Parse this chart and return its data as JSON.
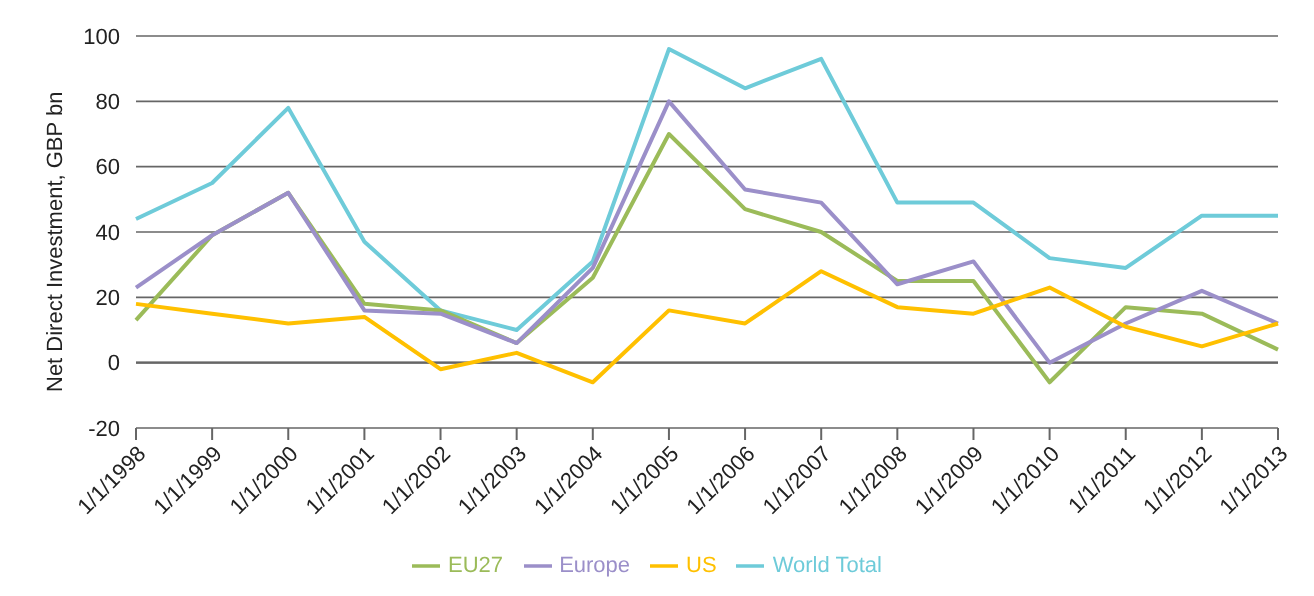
{
  "chart_data": {
    "type": "line",
    "ylabel": "Net Direct Investment, GBP bn",
    "categories": [
      "1/1/1998",
      "1/1/1999",
      "1/1/2000",
      "1/1/2001",
      "1/1/2002",
      "1/1/2003",
      "1/1/2004",
      "1/1/2005",
      "1/1/2006",
      "1/1/2007",
      "1/1/2008",
      "1/1/2009",
      "1/1/2010",
      "1/1/2011",
      "1/1/2012",
      "1/1/2013"
    ],
    "series": [
      {
        "name": "World Total",
        "color": "#6ecbd9",
        "values": [
          44,
          55,
          78,
          37,
          16,
          10,
          31,
          96,
          84,
          93,
          49,
          49,
          32,
          29,
          45,
          45
        ]
      },
      {
        "name": "EU27",
        "color": "#9bbb59",
        "values": [
          13,
          39,
          52,
          18,
          16,
          6,
          26,
          70,
          47,
          40,
          25,
          25,
          -6,
          17,
          15,
          4
        ]
      },
      {
        "name": "Europe",
        "color": "#9b8fc9",
        "values": [
          23,
          39,
          52,
          16,
          15,
          6,
          29,
          80,
          53,
          49,
          24,
          31,
          0,
          12,
          22,
          12
        ]
      },
      {
        "name": "US",
        "color": "#ffc000",
        "values": [
          18,
          15,
          12,
          14,
          -2,
          3,
          -6,
          16,
          12,
          28,
          17,
          15,
          23,
          11,
          5,
          12
        ]
      }
    ],
    "ylim": [
      -20,
      100
    ],
    "yticks": [
      -20,
      0,
      20,
      40,
      60,
      80,
      100
    ],
    "grid": "y",
    "legend": "bottom",
    "marker": "none",
    "line_style": "solid"
  }
}
